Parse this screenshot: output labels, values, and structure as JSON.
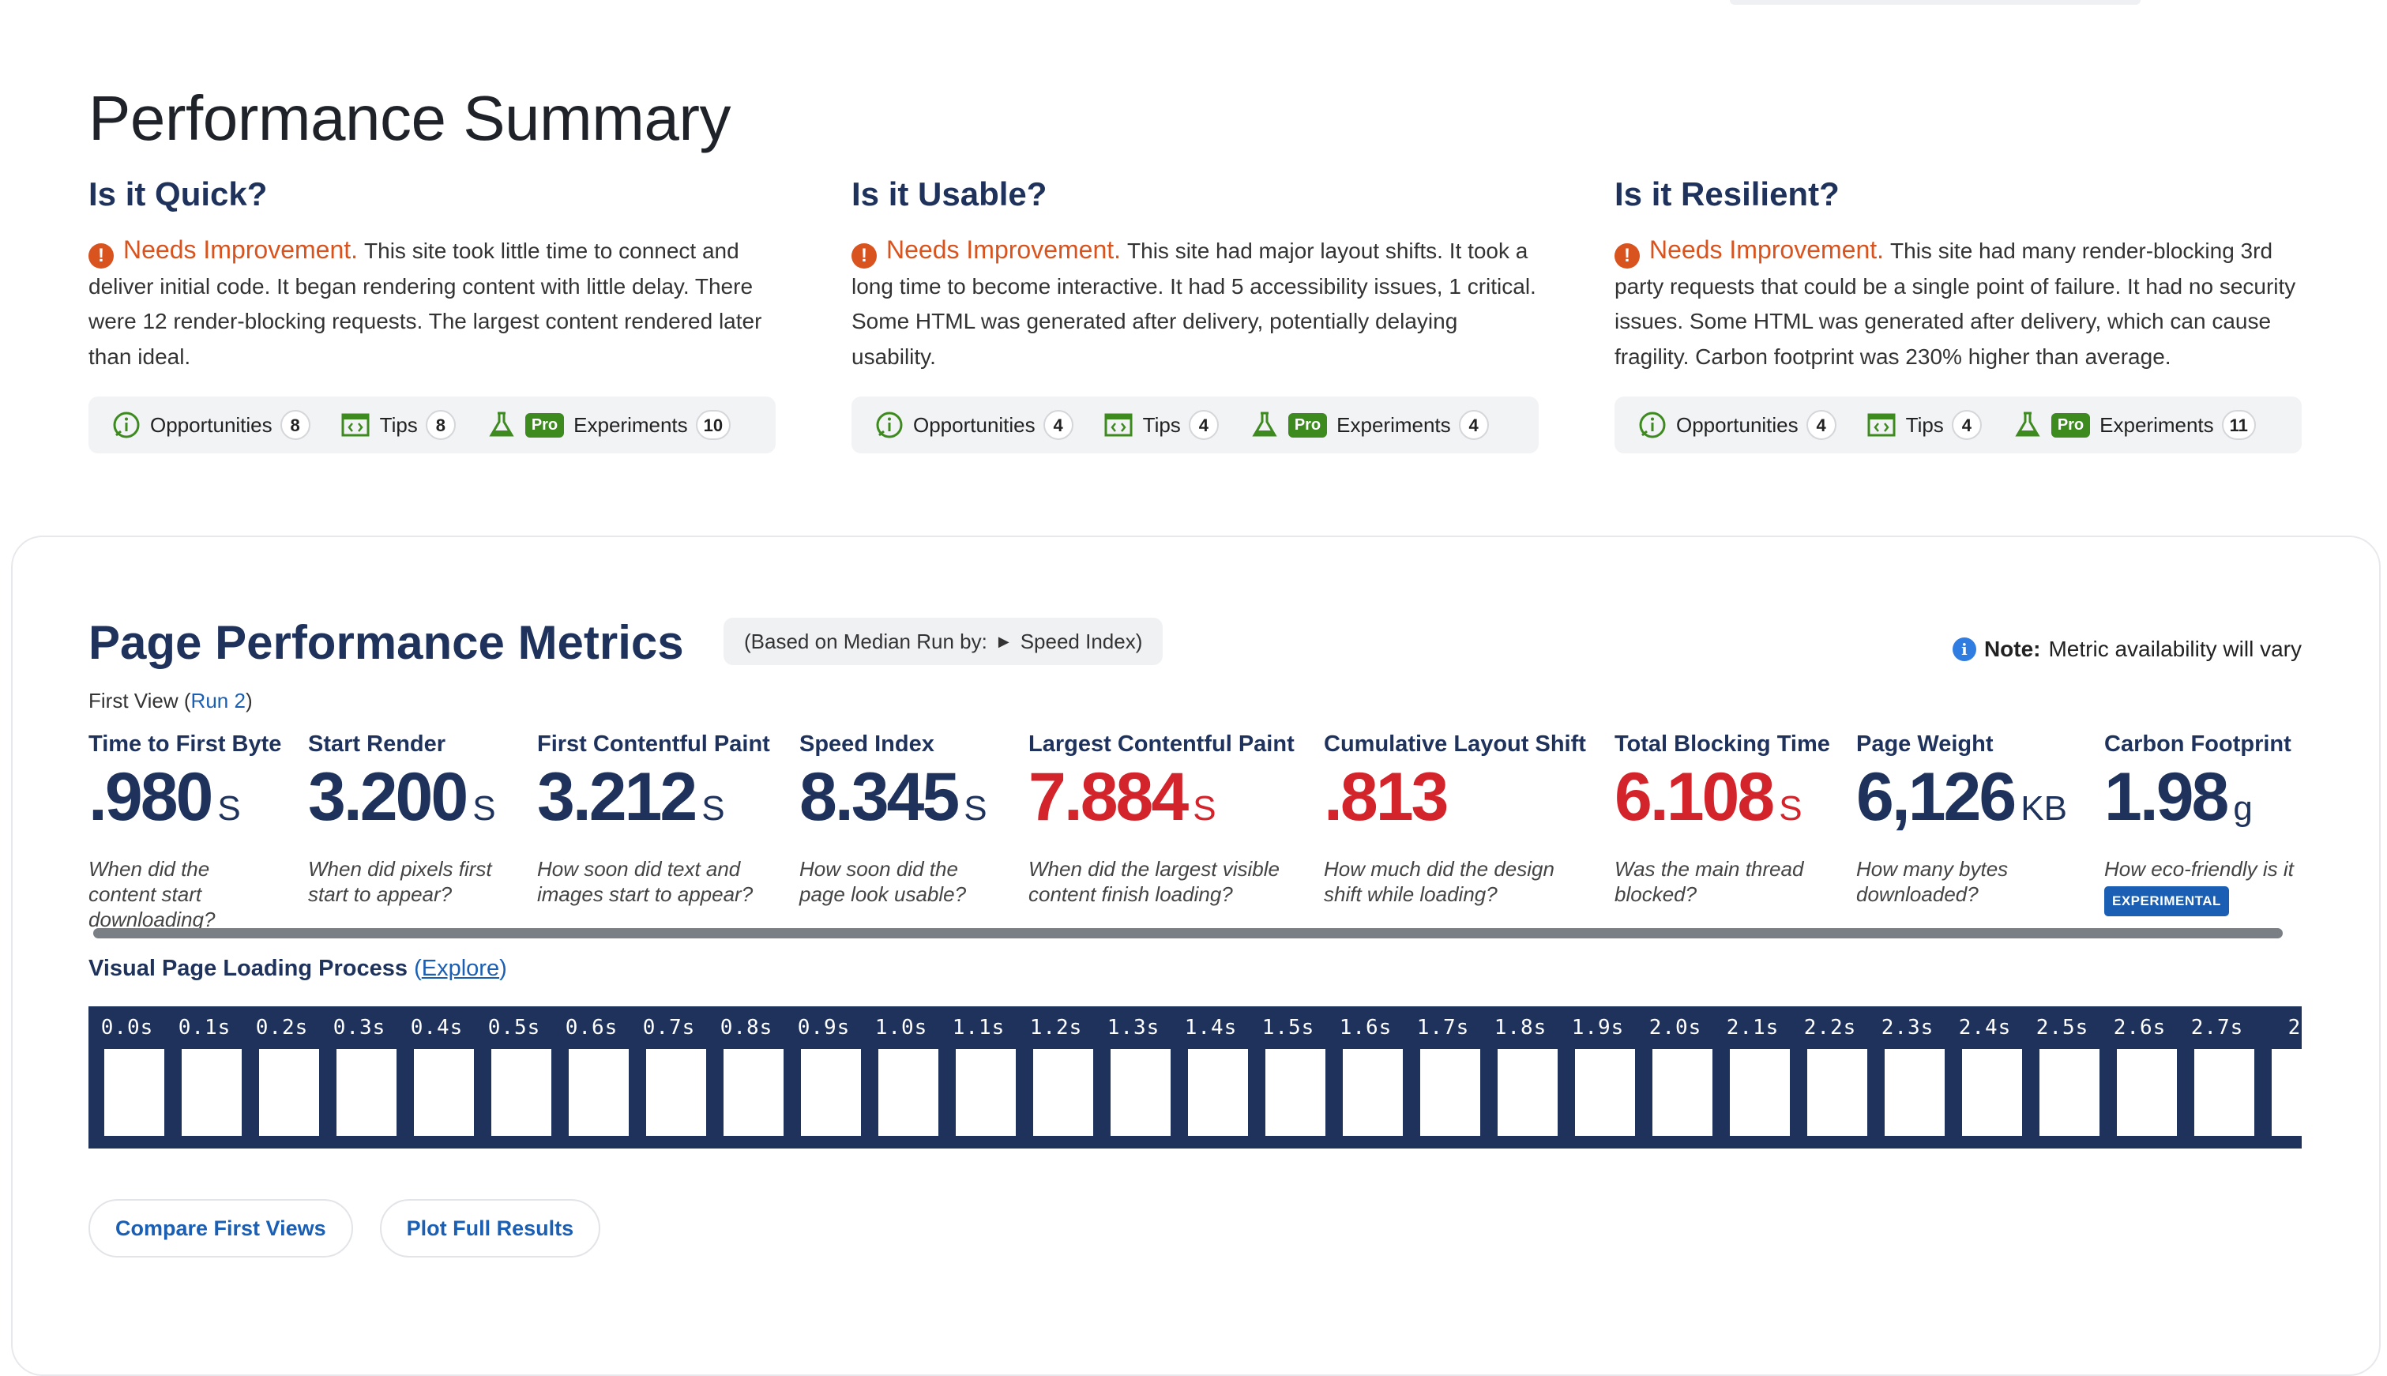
{
  "summary": {
    "title": "Performance Summary",
    "columns": [
      {
        "heading": "Is it Quick?",
        "grade": "Needs Improvement.",
        "text": "This site took little time to connect and deliver initial code. It began rendering content with little delay. There were 12 render-blocking requests. The largest content rendered later than ideal.",
        "opportunities_label": "Opportunities",
        "opportunities": "8",
        "tips_label": "Tips",
        "tips": "8",
        "pro_label": "Pro",
        "experiments_label": "Experiments",
        "experiments": "10"
      },
      {
        "heading": "Is it Usable?",
        "grade": "Needs Improvement.",
        "text": "This site had major layout shifts. It took a long time to become interactive. It had 5 accessibility issues, 1 critical. Some HTML was generated after delivery, potentially delaying usability.",
        "opportunities_label": "Opportunities",
        "opportunities": "4",
        "tips_label": "Tips",
        "tips": "4",
        "pro_label": "Pro",
        "experiments_label": "Experiments",
        "experiments": "4"
      },
      {
        "heading": "Is it Resilient?",
        "grade": "Needs Improvement.",
        "text": "This site had many render-blocking 3rd party requests that could be a single point of failure. It had no security issues. Some HTML was generated after delivery, which can cause fragility. Carbon footprint was 230% higher than average.",
        "opportunities_label": "Opportunities",
        "opportunities": "4",
        "tips_label": "Tips",
        "tips": "4",
        "pro_label": "Pro",
        "experiments_label": "Experiments",
        "experiments": "11"
      }
    ]
  },
  "metrics_section": {
    "title": "Page Performance Metrics",
    "median_prefix": "(Based on Median Run by:",
    "median_value": "Speed Index)",
    "note_bold": "Note:",
    "note_text": "Metric availability will vary",
    "first_view": "First View",
    "run_link": "Run 2"
  },
  "metrics": [
    {
      "label": "Time to First Byte",
      "value": ".980",
      "unit": "S",
      "status": "ok",
      "desc": "When did the content start downloading?"
    },
    {
      "label": "Start Render",
      "value": "3.200",
      "unit": "S",
      "status": "ok",
      "desc": "When did pixels first start to appear?"
    },
    {
      "label": "First Contentful Paint",
      "value": "3.212",
      "unit": "S",
      "status": "ok",
      "desc": "How soon did text and images start to appear?"
    },
    {
      "label": "Speed Index",
      "value": "8.345",
      "unit": "S",
      "status": "ok",
      "desc": "How soon did the page look usable?"
    },
    {
      "label": "Largest Contentful Paint",
      "value": "7.884",
      "unit": "S",
      "status": "bad",
      "desc": "When did the largest visible content finish loading?"
    },
    {
      "label": "Cumulative Layout Shift",
      "value": ".813",
      "unit": "",
      "status": "bad",
      "desc": "How much did the design shift while loading?"
    },
    {
      "label": "Total Blocking Time",
      "value": "6.108",
      "unit": "S",
      "status": "bad",
      "desc": "Was the main thread blocked?"
    },
    {
      "label": "Page Weight",
      "value": "6,126",
      "unit": "KB",
      "status": "ok",
      "desc": "How many bytes downloaded?"
    },
    {
      "label": "Carbon Footprint",
      "value": "1.98",
      "unit": "g",
      "status": "ok",
      "desc": "How eco-friendly is it",
      "badge": "EXPERIMENTAL"
    }
  ],
  "visual": {
    "heading": "Visual Page Loading Process",
    "explore_link": "Explore",
    "frames": [
      "0.0s",
      "0.1s",
      "0.2s",
      "0.3s",
      "0.4s",
      "0.5s",
      "0.6s",
      "0.7s",
      "0.8s",
      "0.9s",
      "1.0s",
      "1.1s",
      "1.2s",
      "1.3s",
      "1.4s",
      "1.5s",
      "1.6s",
      "1.7s",
      "1.8s",
      "1.9s",
      "2.0s",
      "2.1s",
      "2.2s",
      "2.3s",
      "2.4s",
      "2.5s",
      "2.6s",
      "2.7s",
      "2"
    ]
  },
  "buttons": {
    "compare": "Compare First Views",
    "plot": "Plot Full Results"
  },
  "colors": {
    "navy": "#1e325c",
    "warning": "#d9531e",
    "bad_metric": "#d4242b",
    "link": "#1a5fb4",
    "pro_green": "#3d8a1f"
  }
}
